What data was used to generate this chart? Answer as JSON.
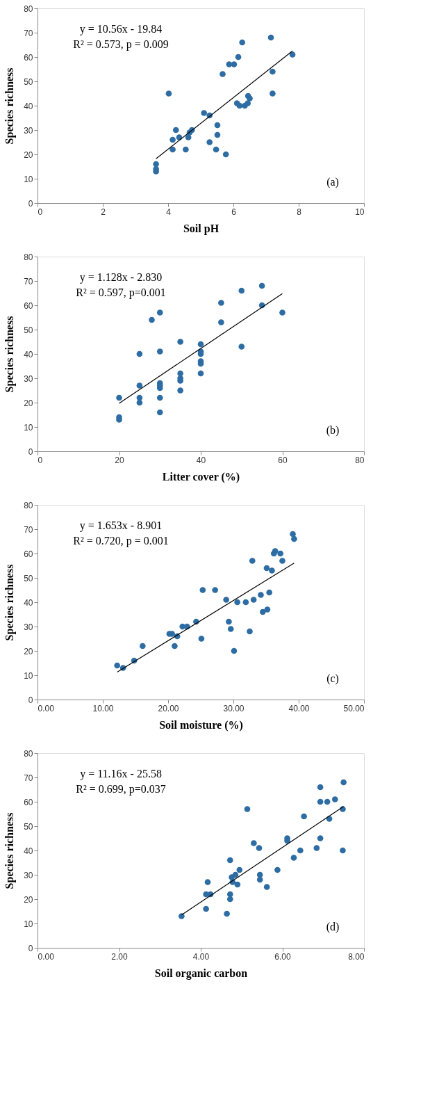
{
  "chart_data": [
    {
      "type": "scatter",
      "xlabel": "Soil pH",
      "ylabel": "Species richness",
      "xlim": [
        0,
        10
      ],
      "ylim": [
        0,
        80
      ],
      "xticks": [
        0,
        2,
        4,
        6,
        8,
        10
      ],
      "yticks": [
        0,
        10,
        20,
        30,
        40,
        50,
        60,
        70,
        80
      ],
      "grid": false,
      "marker": "circle",
      "annotations": [
        "y = 10.56x - 19.84",
        "R² = 0.573, p = 0.009",
        "(a)"
      ],
      "series": [
        {
          "color": "#2e6da4",
          "x": [
            3.63,
            3.63,
            3.63,
            4.02,
            4.14,
            4.14,
            4.24,
            4.34,
            4.54,
            4.62,
            4.66,
            4.73,
            5.1,
            5.27,
            5.27,
            5.47,
            5.51,
            5.51,
            5.67,
            5.77,
            5.87,
            6.02,
            6.15,
            6.27,
            6.11,
            6.19,
            6.35,
            6.44,
            6.45,
            6.5,
            7.15,
            7.2,
            7.2,
            7.81
          ],
          "values": [
            16,
            14,
            13,
            45,
            26,
            22,
            30,
            27,
            22,
            27,
            29,
            30,
            37,
            36,
            25,
            22,
            28,
            32,
            53,
            20,
            57,
            57,
            60,
            66,
            41,
            40,
            40,
            41,
            44,
            43,
            68,
            54,
            45,
            61
          ]
        },
        {
          "type": "line",
          "marker": "none",
          "color": "#000000",
          "x": [
            3.63,
            7.81
          ],
          "values": [
            18.2,
            62.5
          ]
        }
      ]
    },
    {
      "type": "scatter",
      "xlabel": "Litter cover (%)",
      "ylabel": "Species  richness",
      "xlim": [
        0,
        80
      ],
      "ylim": [
        0,
        80
      ],
      "xticks": [
        0,
        20,
        40,
        60,
        80
      ],
      "yticks": [
        0,
        10,
        20,
        30,
        40,
        50,
        60,
        70,
        80
      ],
      "grid": false,
      "marker": "circle",
      "annotations": [
        "y = 1.128x - 2.830",
        "R² = 0.597, p=0.001",
        "(b)"
      ],
      "series": [
        {
          "color": "#2e6da4",
          "x": [
            20,
            20,
            20,
            25,
            25,
            25,
            25,
            28,
            30,
            30,
            30,
            30,
            30,
            30,
            30,
            35,
            35,
            35,
            35,
            35,
            40,
            40,
            40,
            40,
            40,
            40,
            45,
            45,
            50,
            50,
            55,
            55,
            60
          ],
          "values": [
            22,
            14,
            13,
            40,
            27,
            22,
            20,
            54,
            57,
            41,
            28,
            27,
            26,
            22,
            16,
            45,
            32,
            30,
            29,
            25,
            44,
            41,
            40,
            37,
            36,
            32,
            61,
            53,
            66,
            43,
            68,
            60,
            57
          ]
        },
        {
          "type": "line",
          "marker": "none",
          "color": "#000000",
          "x": [
            20,
            60
          ],
          "values": [
            19.7,
            64.8
          ]
        }
      ]
    },
    {
      "type": "scatter",
      "xlabel": "Soil moisture (%)",
      "ylabel": "Species richness",
      "xlim": [
        0,
        50
      ],
      "ylim": [
        0,
        80
      ],
      "xticks": [
        {
          "value": 0,
          "label": "0.00"
        },
        {
          "value": 10,
          "label": "10.00"
        },
        {
          "value": 20,
          "label": "20.00"
        },
        {
          "value": 30,
          "label": "30.00"
        },
        {
          "value": 40,
          "label": "40.00"
        },
        {
          "value": 50,
          "label": "50.00"
        }
      ],
      "yticks": [
        0,
        10,
        20,
        30,
        40,
        50,
        60,
        70,
        80
      ],
      "grid": false,
      "marker": "circle",
      "annotations": [
        "y = 1.653x - 8.901",
        "R² = 0.720, p = 0.001",
        "(c)"
      ],
      "series": [
        {
          "color": "#2e6da4",
          "x": [
            39.1,
            39.3,
            32.9,
            36.4,
            36.2,
            37.2,
            37.5,
            35.1,
            35.9,
            25.3,
            27.2,
            28.9,
            30.6,
            31.9,
            33.1,
            34.2,
            35.5,
            34.5,
            35.2,
            24.3,
            29.3,
            29.6,
            32.5,
            22.2,
            22.9,
            20.2,
            20.6,
            21.4,
            16.1,
            21.0,
            25.1,
            30.1,
            14.8,
            12.2,
            13.1
          ],
          "values": [
            68,
            66,
            57,
            61,
            60,
            60,
            57,
            54,
            53,
            45,
            45,
            41,
            40,
            40,
            41,
            43,
            44,
            36,
            37,
            32,
            32,
            29,
            28,
            30,
            30,
            27,
            27,
            26,
            22,
            22,
            25,
            20,
            16,
            14,
            13
          ]
        },
        {
          "type": "line",
          "marker": "none",
          "color": "#000000",
          "x": [
            12.2,
            39.3
          ],
          "values": [
            11.3,
            56.1
          ]
        }
      ]
    },
    {
      "type": "scatter",
      "xlabel": "Soil organic carbon",
      "ylabel": "Species richness",
      "xlim": [
        0,
        8
      ],
      "ylim": [
        0,
        80
      ],
      "xticks": [
        {
          "value": 0,
          "label": "0.00"
        },
        {
          "value": 2,
          "label": "2.00"
        },
        {
          "value": 4,
          "label": "4.00"
        },
        {
          "value": 6,
          "label": "6.00"
        },
        {
          "value": 8,
          "label": "8.00"
        }
      ],
      "yticks": [
        0,
        10,
        20,
        30,
        40,
        50,
        60,
        70,
        80
      ],
      "grid": false,
      "marker": "circle",
      "annotations": [
        "y = 11.16x - 25.58",
        "R² = 0.699, p=0.037",
        "(d)"
      ],
      "series": [
        {
          "color": "#2e6da4",
          "x": [
            3.53,
            4.13,
            4.13,
            4.24,
            4.17,
            4.64,
            4.72,
            4.72,
            4.72,
            4.76,
            4.78,
            4.85,
            4.9,
            4.95,
            5.14,
            5.3,
            5.43,
            5.45,
            5.45,
            5.62,
            5.88,
            6.12,
            6.12,
            6.28,
            6.44,
            6.53,
            6.84,
            6.93,
            6.93,
            6.93,
            7.1,
            7.15,
            7.29,
            7.48,
            7.48,
            7.5
          ],
          "values": [
            13,
            16,
            22,
            22,
            27,
            14,
            20,
            22,
            36,
            29,
            27,
            30,
            26,
            32,
            57,
            43,
            41,
            30,
            28,
            25,
            32,
            45,
            44,
            37,
            40,
            54,
            41,
            66,
            60,
            45,
            60,
            53,
            61,
            57,
            40,
            68
          ]
        },
        {
          "type": "line",
          "marker": "none",
          "color": "#000000",
          "x": [
            3.53,
            7.5
          ],
          "values": [
            13.5,
            58.1
          ]
        }
      ]
    }
  ]
}
